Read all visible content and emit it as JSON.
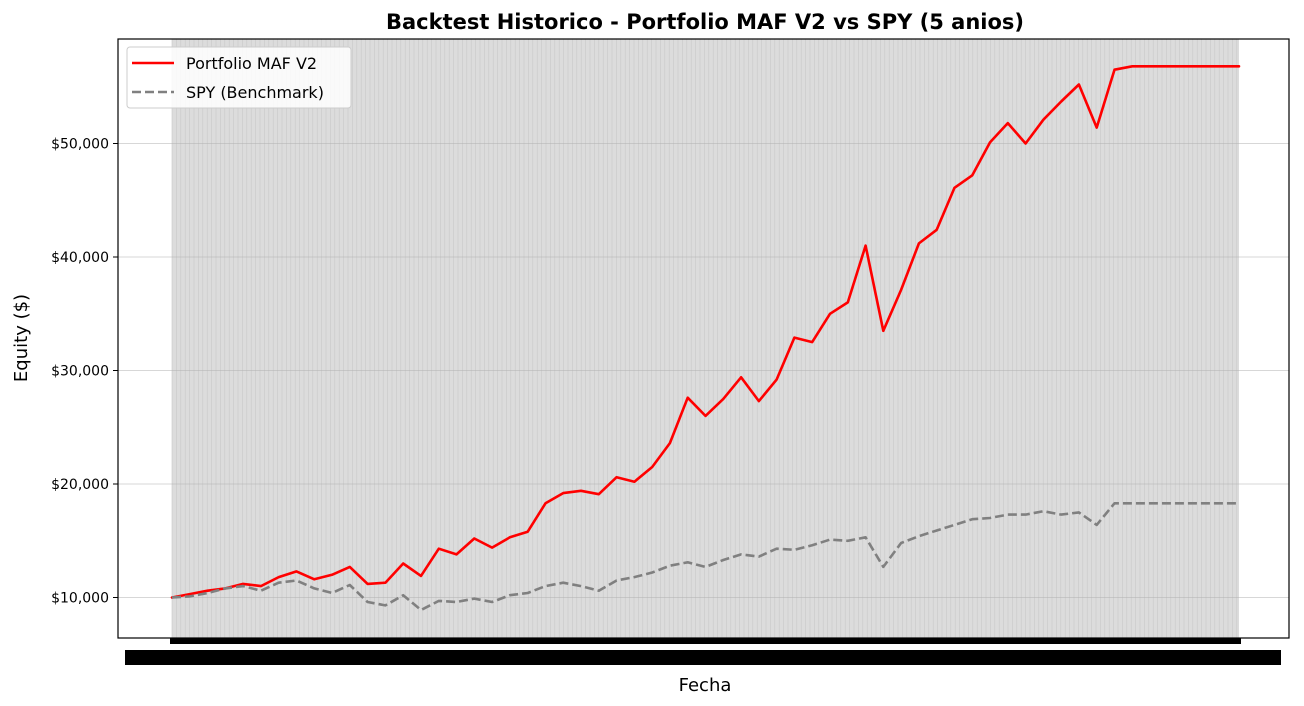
{
  "chart_data": {
    "type": "line",
    "title": "Backtest Historico - Portfolio MAF V2 vs SPY (5 anios)",
    "xlabel": "Fecha",
    "ylabel": "Equity ($)",
    "ylim": [
      6300,
      59000
    ],
    "yticks": [
      10000,
      20000,
      30000,
      40000,
      50000
    ],
    "ytick_labels": [
      "$10,000",
      "$20,000",
      "$30,000",
      "$40,000",
      "$50,000"
    ],
    "x_range": [
      0,
      60
    ],
    "grid": "y",
    "legend_location": "upper-left",
    "colors": {
      "portfolio": "#ff0000",
      "spy": "#808080",
      "background_band": "#dcdcdc"
    },
    "series": [
      {
        "name": "Portfolio MAF V2",
        "style": "solid",
        "color": "#ff0000",
        "x": [
          0,
          1,
          2,
          3,
          4,
          5,
          6,
          7,
          8,
          9,
          10,
          11,
          12,
          13,
          14,
          15,
          16,
          17,
          18,
          19,
          20,
          21,
          22,
          23,
          24,
          25,
          26,
          27,
          28,
          29,
          30,
          31,
          32,
          33,
          34,
          35,
          36,
          37,
          38,
          39,
          40,
          41,
          42,
          43,
          44,
          45,
          46,
          47,
          48,
          49,
          50,
          51,
          52,
          53,
          54,
          55,
          56,
          57,
          58,
          59,
          60
        ],
        "values": [
          10000,
          10300,
          10600,
          10800,
          11200,
          11000,
          11800,
          12300,
          11600,
          12000,
          12700,
          11200,
          11300,
          13000,
          11900,
          14300,
          13800,
          15200,
          14400,
          15300,
          15800,
          18300,
          19200,
          19400,
          19100,
          20600,
          20200,
          21500,
          23600,
          27600,
          26000,
          27500,
          29400,
          27300,
          29200,
          32900,
          32500,
          35000,
          36000,
          41000,
          33500,
          37100,
          41200,
          42400,
          46100,
          47200,
          50100,
          51800,
          50000,
          52100,
          53700,
          55200,
          51400,
          56500,
          56800,
          56800,
          56800,
          56800,
          56800,
          56800,
          56800
        ]
      },
      {
        "name": "SPY (Benchmark)",
        "style": "dashed",
        "color": "#808080",
        "x": [
          0,
          1,
          2,
          3,
          4,
          5,
          6,
          7,
          8,
          9,
          10,
          11,
          12,
          13,
          14,
          15,
          16,
          17,
          18,
          19,
          20,
          21,
          22,
          23,
          24,
          25,
          26,
          27,
          28,
          29,
          30,
          31,
          32,
          33,
          34,
          35,
          36,
          37,
          38,
          39,
          40,
          41,
          42,
          43,
          44,
          45,
          46,
          47,
          48,
          49,
          50,
          51,
          52,
          53,
          54,
          55,
          56,
          57,
          58,
          59,
          60
        ],
        "values": [
          10000,
          10100,
          10400,
          10800,
          11000,
          10600,
          11300,
          11500,
          10800,
          10400,
          11100,
          9600,
          9300,
          10200,
          8900,
          9700,
          9600,
          9900,
          9600,
          10200,
          10400,
          11000,
          11300,
          11000,
          10600,
          11500,
          11800,
          12200,
          12800,
          13100,
          12700,
          13300,
          13800,
          13600,
          14300,
          14200,
          14600,
          15100,
          15000,
          15300,
          12700,
          14800,
          15400,
          15900,
          16400,
          16900,
          17000,
          17300,
          17300,
          17600,
          17300,
          17500,
          16400,
          18300,
          18300,
          18300,
          18300,
          18300,
          18300,
          18300,
          18300
        ]
      }
    ]
  }
}
